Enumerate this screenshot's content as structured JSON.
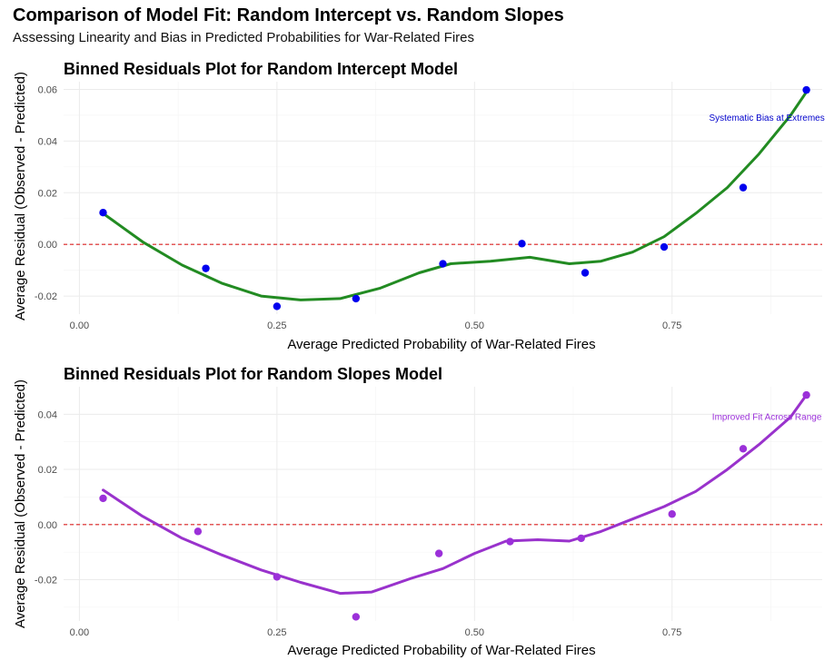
{
  "page": {
    "title": "Comparison of Model Fit: Random Intercept vs. Random Slopes",
    "subtitle": "Assessing Linearity and Bias in Predicted Probabilities for War-Related Fires"
  },
  "chart_data": [
    {
      "type": "scatter",
      "title": "Binned Residuals Plot for Random Intercept Model",
      "xlabel": "Average Predicted Probability of War-Related Fires",
      "ylabel": "Average Residual (Observed - Predicted)",
      "xlim": [
        -0.02,
        0.94
      ],
      "ylim": [
        -0.027,
        0.063
      ],
      "xticks": [
        0,
        0.25,
        0.5,
        0.75
      ],
      "xtick_labels": [
        "0.00",
        "0.25",
        "0.50",
        "0.75"
      ],
      "yticks": [
        -0.02,
        0,
        0.02,
        0.04,
        0.06
      ],
      "ytick_labels": [
        "-0.02",
        "0.00",
        "0.02",
        "0.04",
        "0.06"
      ],
      "color": "#0000ee",
      "smooth_color": "#228b22",
      "reference_line": {
        "y": 0,
        "color": "#dd2222",
        "style": "dashed"
      },
      "points": {
        "x": [
          0.03,
          0.16,
          0.25,
          0.35,
          0.46,
          0.56,
          0.64,
          0.74,
          0.84,
          0.92
        ],
        "y": [
          0.0123,
          -0.0093,
          -0.024,
          -0.021,
          -0.0075,
          0.0003,
          -0.011,
          -0.001,
          0.022,
          0.0598
        ]
      },
      "smooth": {
        "x": [
          0.03,
          0.08,
          0.13,
          0.18,
          0.23,
          0.28,
          0.33,
          0.38,
          0.43,
          0.47,
          0.52,
          0.57,
          0.62,
          0.66,
          0.7,
          0.74,
          0.78,
          0.82,
          0.86,
          0.9,
          0.92
        ],
        "y": [
          0.012,
          0.001,
          -0.008,
          -0.015,
          -0.02,
          -0.0215,
          -0.021,
          -0.017,
          -0.011,
          -0.0075,
          -0.0065,
          -0.005,
          -0.0075,
          -0.0065,
          -0.003,
          0.003,
          0.012,
          0.022,
          0.035,
          0.05,
          0.059
        ]
      },
      "annotation": {
        "text": "Systematic Bias at Extremes",
        "x": 0.87,
        "y": 0.049,
        "color": "#0000cc"
      }
    },
    {
      "type": "scatter",
      "title": "Binned Residuals Plot for Random Slopes Model",
      "xlabel": "Average Predicted Probability of War-Related Fires",
      "ylabel": "Average Residual (Observed - Predicted)",
      "xlim": [
        -0.02,
        0.94
      ],
      "ylim": [
        -0.035,
        0.05
      ],
      "xticks": [
        0,
        0.25,
        0.5,
        0.75
      ],
      "xtick_labels": [
        "0.00",
        "0.25",
        "0.50",
        "0.75"
      ],
      "yticks": [
        -0.02,
        0,
        0.02,
        0.04
      ],
      "ytick_labels": [
        "-0.02",
        "0.00",
        "0.02",
        "0.04"
      ],
      "color": "#9b30d9",
      "smooth_color": "#9932cc",
      "reference_line": {
        "y": 0,
        "color": "#dd2222",
        "style": "dashed"
      },
      "points": {
        "x": [
          0.03,
          0.15,
          0.25,
          0.35,
          0.455,
          0.545,
          0.635,
          0.75,
          0.84,
          0.92
        ],
        "y": [
          0.0095,
          -0.0025,
          -0.019,
          -0.0335,
          -0.0105,
          -0.0062,
          -0.005,
          0.0038,
          0.0275,
          0.047
        ]
      },
      "smooth": {
        "x": [
          0.03,
          0.08,
          0.13,
          0.18,
          0.23,
          0.28,
          0.33,
          0.37,
          0.42,
          0.46,
          0.5,
          0.54,
          0.58,
          0.62,
          0.66,
          0.7,
          0.74,
          0.78,
          0.82,
          0.86,
          0.9,
          0.92
        ],
        "y": [
          0.0125,
          0.003,
          -0.005,
          -0.011,
          -0.0165,
          -0.021,
          -0.025,
          -0.0245,
          -0.0195,
          -0.016,
          -0.0105,
          -0.006,
          -0.0055,
          -0.006,
          -0.0025,
          0.002,
          0.0065,
          0.012,
          0.02,
          0.029,
          0.039,
          0.047
        ]
      },
      "annotation": {
        "text": "Improved Fit Across Range",
        "x": 0.87,
        "y": 0.039,
        "color": "#9b30d9"
      }
    }
  ]
}
